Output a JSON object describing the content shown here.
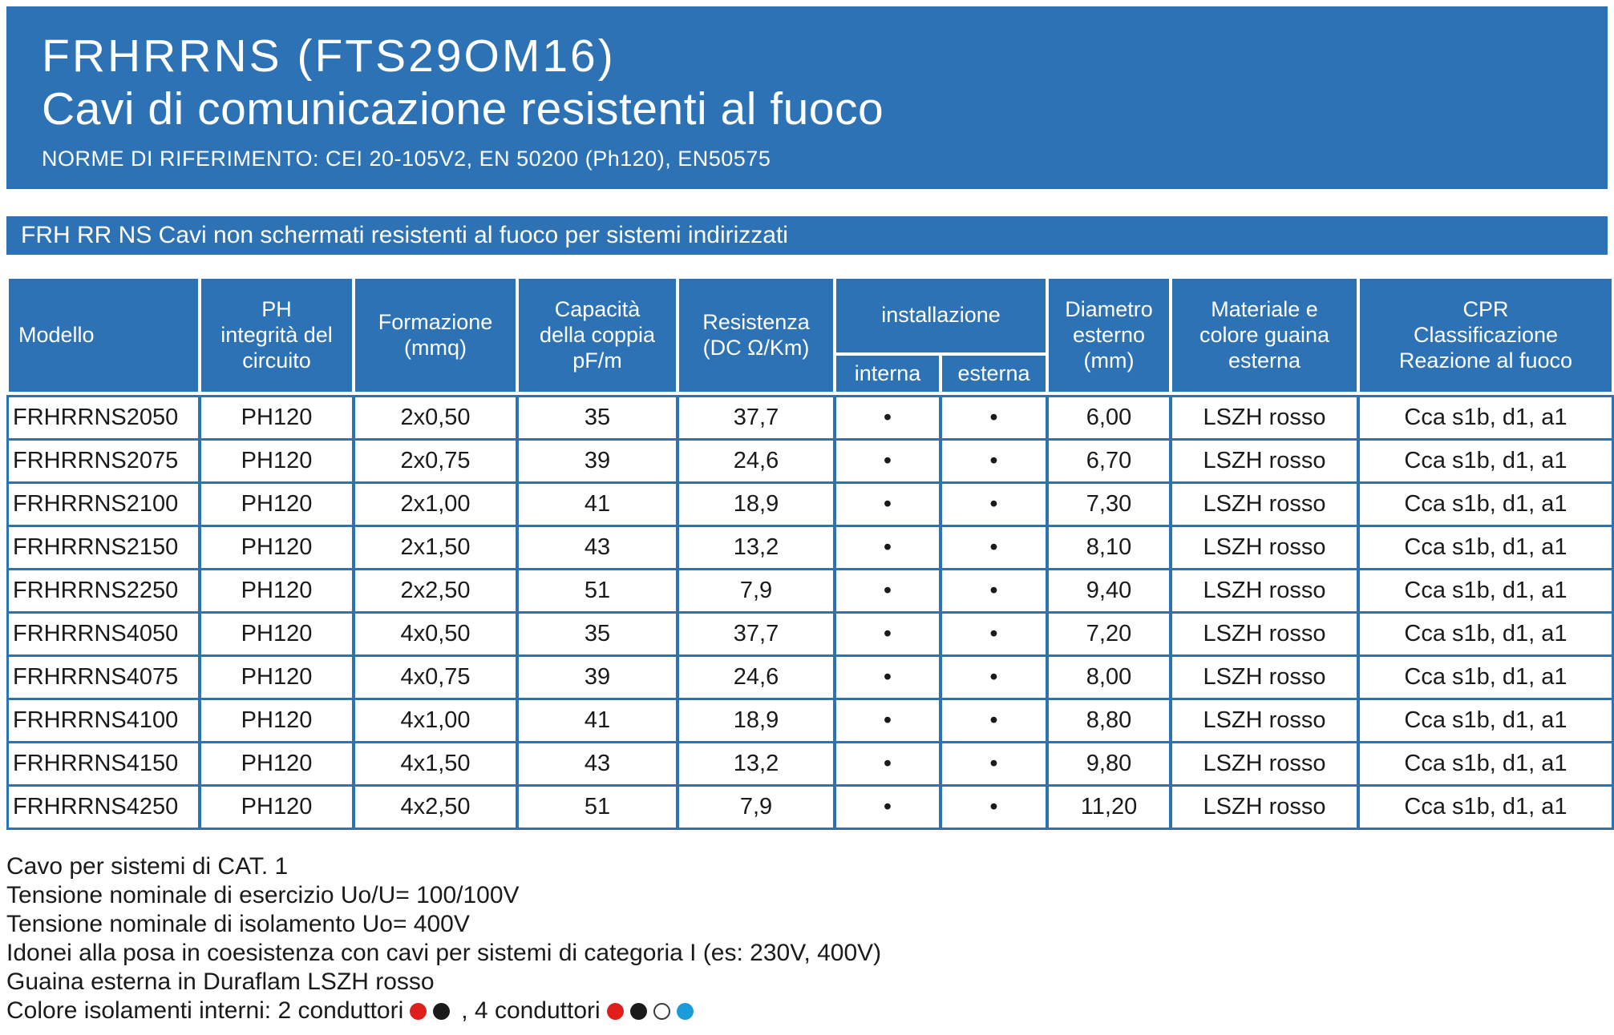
{
  "colors": {
    "brand_blue": "#2d72b5",
    "dot_red": "#e01f1c",
    "dot_black": "#1a1a1a",
    "dot_white": "#ffffff",
    "dot_blue": "#1b9cd8"
  },
  "header": {
    "title_line1": "FRHRRNS (FTS29OM16)",
    "title_line2": "Cavi di comunicazione resistenti al fuoco",
    "subtitle": "NORME DI RIFERIMENTO: CEI 20-105V2, EN 50200 (Ph120), EN50575"
  },
  "section_bar": {
    "label": "FRH RR NS Cavi non schermati resistenti al fuoco per sistemi indirizzati"
  },
  "table": {
    "headers": {
      "modello": "Modello",
      "ph": "PH\nintegrità del\ncircuito",
      "formazione": "Formazione\n(mmq)",
      "capacita": "Capacità\ndella coppia\npF/m",
      "resistenza": "Resistenza\n(DC Ω/Km)",
      "installazione": "installazione",
      "interna": "interna",
      "esterna": "esterna",
      "diametro": "Diametro\nesterno\n(mm)",
      "materiale": "Materiale e\ncolore guaina\nesterna",
      "cpr": "CPR\nClassificazione\nReazione al fuoco"
    },
    "rows": [
      [
        "FRHRRNS2050",
        "PH120",
        "2x0,50",
        "35",
        "37,7",
        "•",
        "•",
        "6,00",
        "LSZH rosso",
        "Cca s1b, d1, a1"
      ],
      [
        "FRHRRNS2075",
        "PH120",
        "2x0,75",
        "39",
        "24,6",
        "•",
        "•",
        "6,70",
        "LSZH rosso",
        "Cca s1b, d1, a1"
      ],
      [
        "FRHRRNS2100",
        "PH120",
        "2x1,00",
        "41",
        "18,9",
        "•",
        "•",
        "7,30",
        "LSZH rosso",
        "Cca s1b, d1, a1"
      ],
      [
        "FRHRRNS2150",
        "PH120",
        "2x1,50",
        "43",
        "13,2",
        "•",
        "•",
        "8,10",
        "LSZH rosso",
        "Cca s1b, d1, a1"
      ],
      [
        "FRHRRNS2250",
        "PH120",
        "2x2,50",
        "51",
        "7,9",
        "•",
        "•",
        "9,40",
        "LSZH rosso",
        "Cca s1b, d1, a1"
      ],
      [
        "FRHRRNS4050",
        "PH120",
        "4x0,50",
        "35",
        "37,7",
        "•",
        "•",
        "7,20",
        "LSZH rosso",
        "Cca s1b, d1, a1"
      ],
      [
        "FRHRRNS4075",
        "PH120",
        "4x0,75",
        "39",
        "24,6",
        "•",
        "•",
        "8,00",
        "LSZH rosso",
        "Cca s1b, d1, a1"
      ],
      [
        "FRHRRNS4100",
        "PH120",
        "4x1,00",
        "41",
        "18,9",
        "•",
        "•",
        "8,80",
        "LSZH rosso",
        "Cca s1b, d1, a1"
      ],
      [
        "FRHRRNS4150",
        "PH120",
        "4x1,50",
        "43",
        "13,2",
        "•",
        "•",
        "9,80",
        "LSZH rosso",
        "Cca s1b, d1, a1"
      ],
      [
        "FRHRRNS4250",
        "PH120",
        "4x2,50",
        "51",
        "7,9",
        "•",
        "•",
        "11,20",
        "LSZH rosso",
        "Cca s1b, d1, a1"
      ]
    ]
  },
  "footer": {
    "notes": [
      "Cavo per sistemi di CAT. 1",
      "Tensione nominale di esercizio Uo/U= 100/100V",
      "Tensione nominale di isolamento Uo= 400V",
      "Idonei alla posa in coesistenza con cavi per sistemi di categoria I (es: 230V, 400V)",
      "Guaina esterna in Duraflam LSZH rosso"
    ],
    "conductors": {
      "prefix": "Colore isolamenti interni: 2 conduttori",
      "middle": ", 4 conduttori",
      "two_wire_colors": [
        "#e01f1c",
        "#1a1a1a"
      ],
      "four_wire_colors": [
        "#e01f1c",
        "#1a1a1a",
        "#ffffff",
        "#1b9cd8"
      ]
    }
  }
}
